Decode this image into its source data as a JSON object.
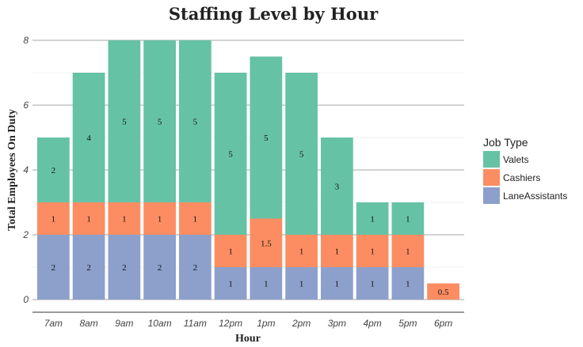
{
  "chart_data": {
    "type": "bar",
    "stacked": true,
    "title": "Staffing Level by Hour",
    "xlabel": "Hour",
    "ylabel": "Total Employees On Duty",
    "ylim": [
      0,
      8
    ],
    "yticks": [
      0,
      2,
      4,
      6,
      8
    ],
    "categories": [
      "7am",
      "8am",
      "9am",
      "10am",
      "11am",
      "12pm",
      "1pm",
      "2pm",
      "3pm",
      "4pm",
      "5pm",
      "6pm"
    ],
    "legend_title": "Job Type",
    "legend_position": "right",
    "series": [
      {
        "name": "LaneAssistants",
        "color": "#8DA0CB",
        "values": [
          2,
          2,
          2,
          2,
          2,
          1,
          1,
          1,
          1,
          1,
          1,
          0
        ]
      },
      {
        "name": "Cashiers",
        "color": "#FC8D62",
        "values": [
          1,
          1,
          1,
          1,
          1,
          1,
          1.5,
          1,
          1,
          1,
          1,
          0.5
        ]
      },
      {
        "name": "Valets",
        "color": "#66C2A5",
        "values": [
          2,
          4,
          5,
          5,
          5,
          5,
          5,
          5,
          3,
          1,
          1,
          0
        ]
      }
    ],
    "legend_order": [
      "Valets",
      "Cashiers",
      "LaneAssistants"
    ]
  }
}
